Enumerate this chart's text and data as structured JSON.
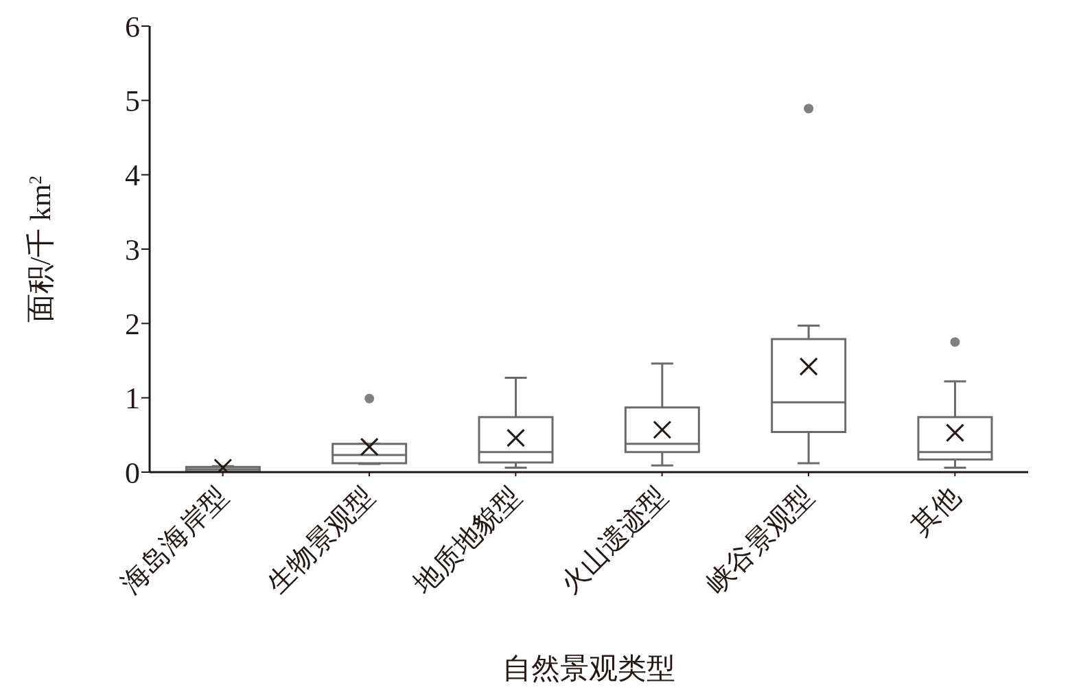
{
  "chart_data": {
    "type": "box",
    "xlabel": "自然景观类型",
    "ylabel": "面积/千 km$^{2}$",
    "categories": [
      "海岛海岸型",
      "生物景观型",
      "地质地貌型",
      "火山遗迹型",
      "峡谷景观型",
      "其他"
    ],
    "ylim": [
      0,
      6
    ],
    "yticks": [
      0,
      1,
      2,
      3,
      4,
      5,
      6
    ],
    "color": "#6b6b6b",
    "boxes": [
      {
        "low": 0.01,
        "q1": 0.01,
        "median": 0.04,
        "q3": 0.07,
        "high": 0.08,
        "mean": 0.06
      },
      {
        "low": 0.11,
        "q1": 0.12,
        "median": 0.23,
        "q3": 0.38,
        "high": 0.38,
        "mean": 0.34,
        "outliers": [
          0.99
        ]
      },
      {
        "low": 0.06,
        "q1": 0.13,
        "median": 0.27,
        "q3": 0.74,
        "high": 1.27,
        "mean": 0.46
      },
      {
        "low": 0.09,
        "q1": 0.27,
        "median": 0.38,
        "q3": 0.87,
        "high": 1.46,
        "mean": 0.57
      },
      {
        "low": 0.12,
        "q1": 0.54,
        "median": 0.94,
        "q3": 1.79,
        "high": 1.97,
        "mean": 1.42,
        "outliers": [
          4.89
        ]
      },
      {
        "low": 0.06,
        "q1": 0.17,
        "median": 0.27,
        "q3": 0.74,
        "high": 1.22,
        "mean": 0.53,
        "outliers": [
          1.75
        ]
      }
    ]
  }
}
